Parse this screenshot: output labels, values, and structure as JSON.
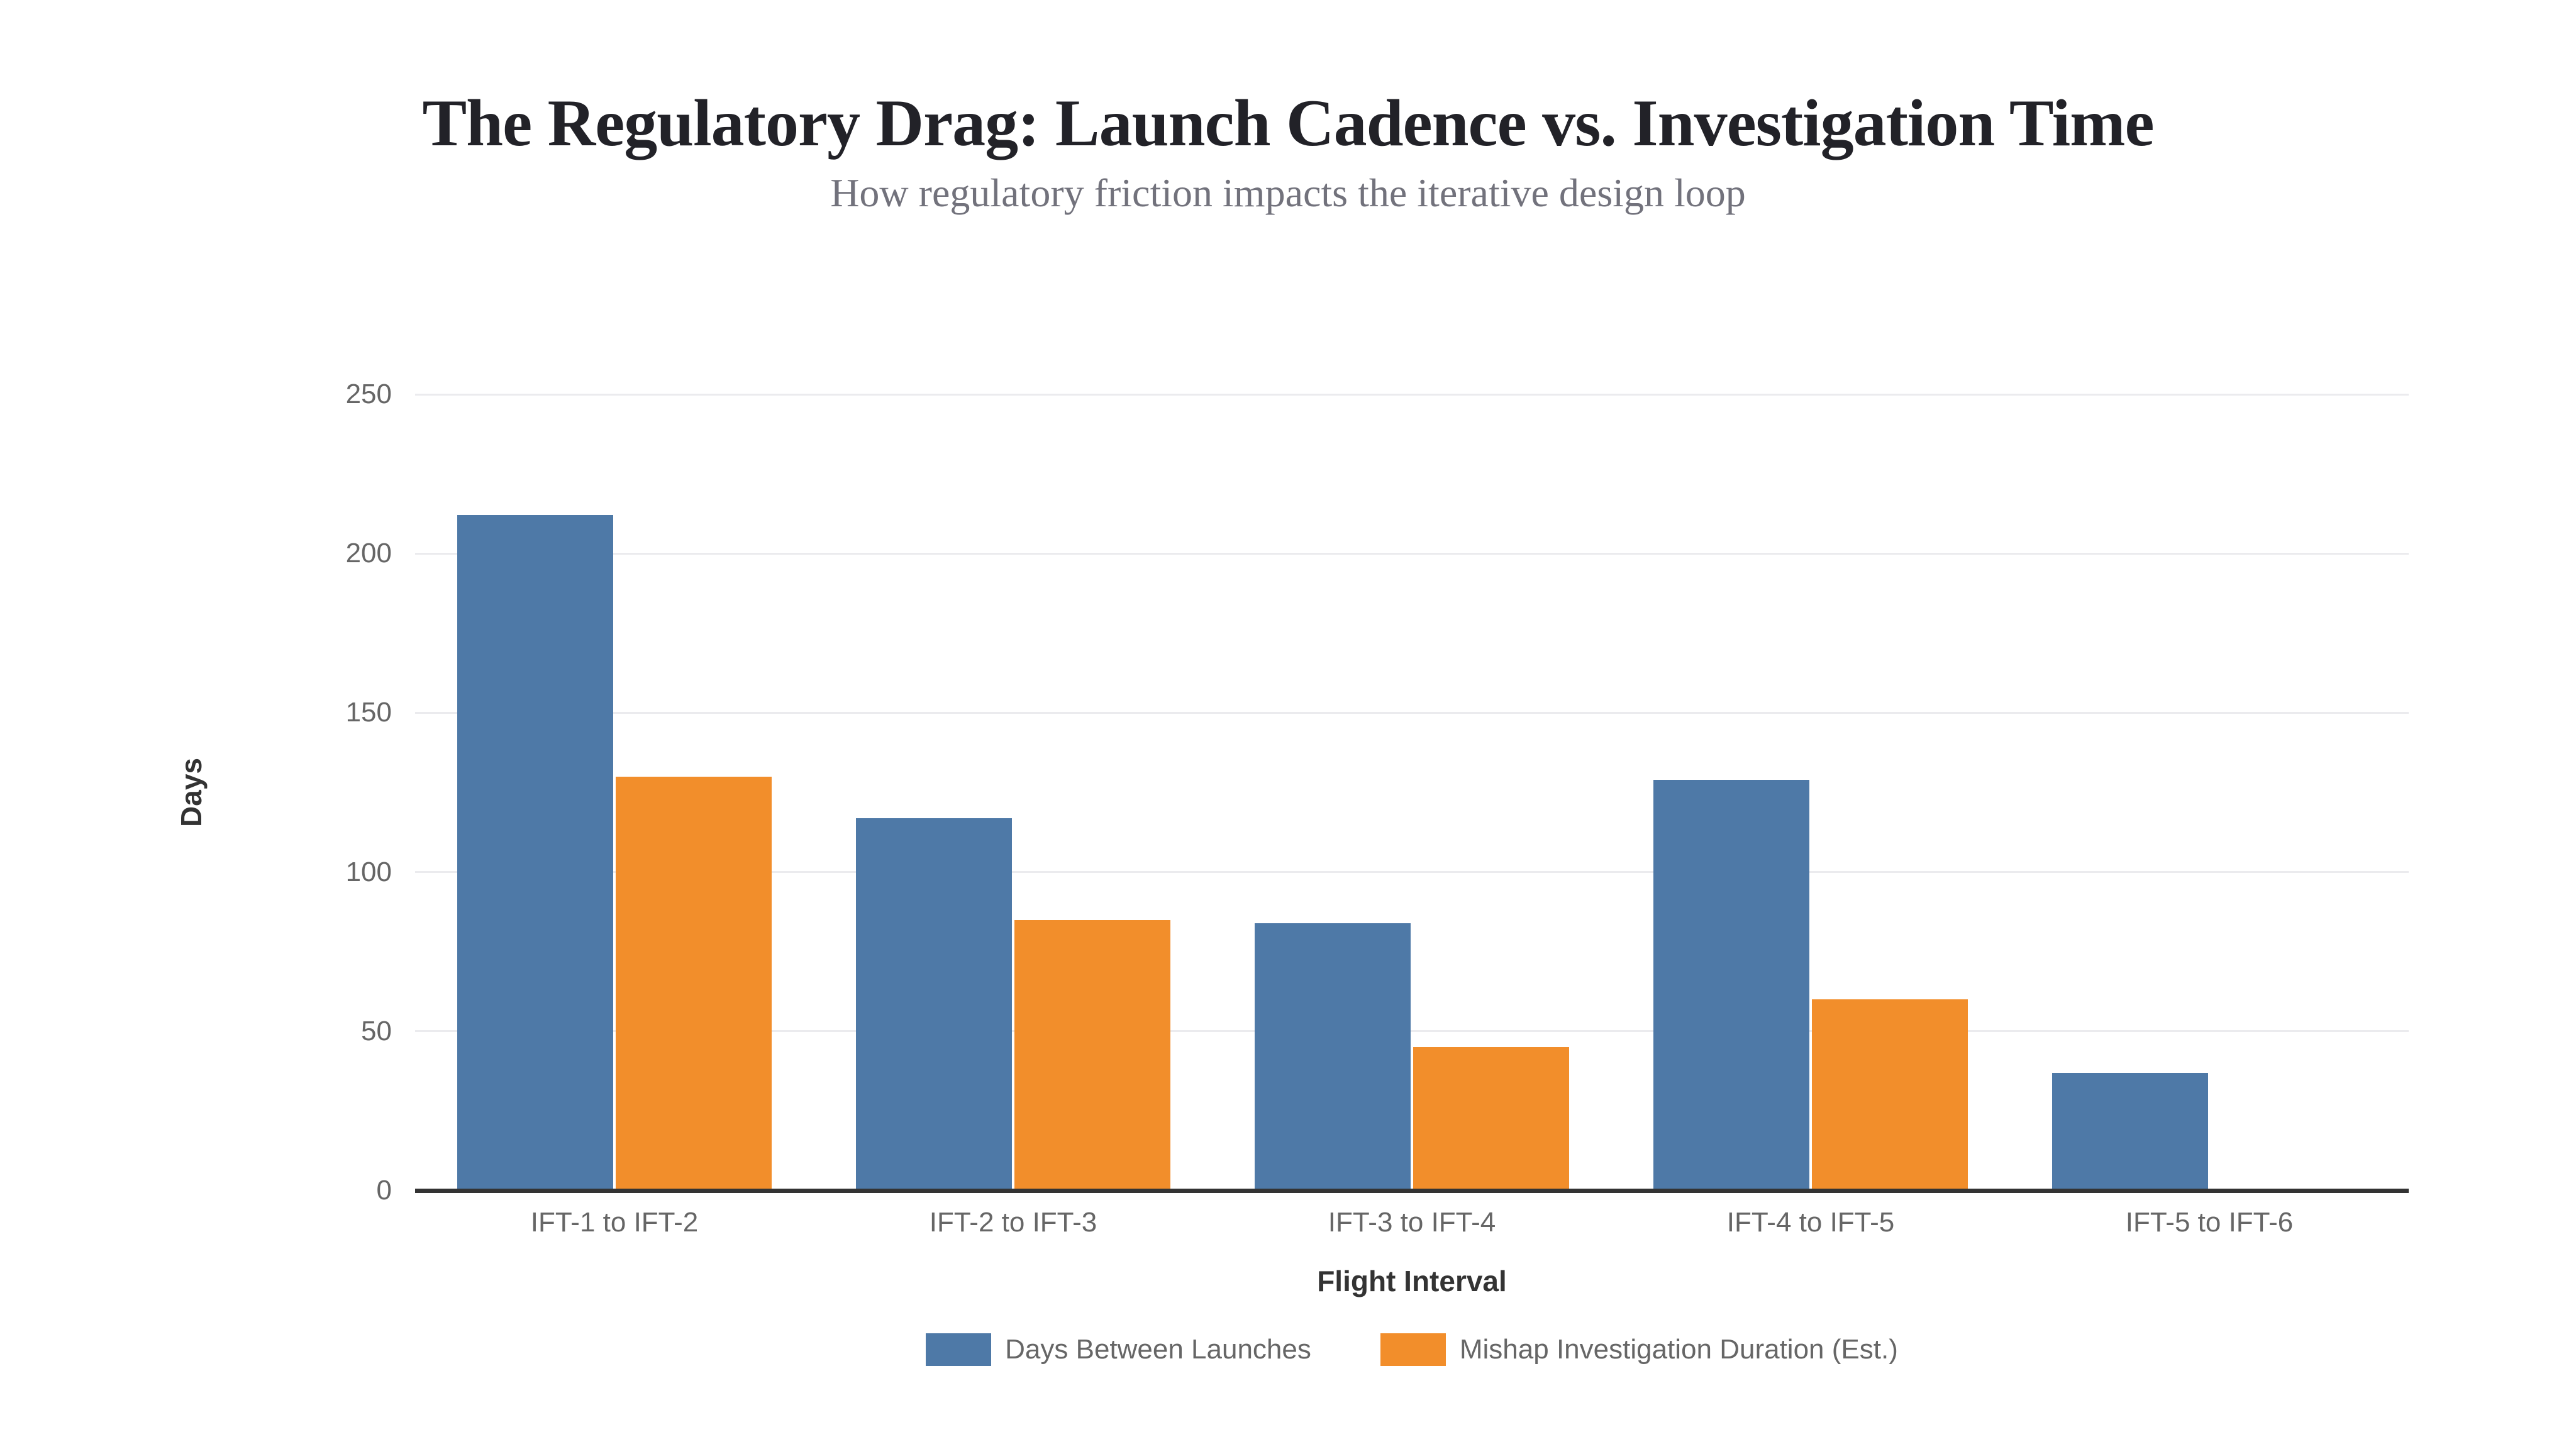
{
  "header": {
    "title": "The Regulatory Drag: Launch Cadence vs. Investigation Time",
    "subtitle": "How regulatory friction impacts the iterative design loop"
  },
  "chart_data": {
    "type": "bar",
    "categories": [
      "IFT-1 to IFT-2",
      "IFT-2 to IFT-3",
      "IFT-3 to IFT-4",
      "IFT-4 to IFT-5",
      "IFT-5 to IFT-6"
    ],
    "series": [
      {
        "name": "Days Between Launches",
        "color": "#4e79a7",
        "values": [
          212,
          117,
          84,
          129,
          37
        ]
      },
      {
        "name": "Mishap Investigation Duration (Est.)",
        "color": "#f28e2b",
        "values": [
          130,
          85,
          45,
          60,
          0
        ]
      }
    ],
    "title": "The Regulatory Drag: Launch Cadence vs. Investigation Time",
    "subtitle": "How regulatory friction impacts the iterative design loop",
    "xlabel": "Flight Interval",
    "ylabel": "Days",
    "ylim": [
      0,
      250
    ],
    "yticks": [
      0,
      50,
      100,
      150,
      200,
      250
    ],
    "grid": true,
    "legend_position": "bottom",
    "colors": {
      "grid": "#ebebee",
      "axis_line": "#333333",
      "tick_text": "#666666",
      "axis_title_text": "#333333",
      "title_text": "#222228",
      "subtitle_text": "#72727c",
      "background": "#ffffff"
    }
  }
}
